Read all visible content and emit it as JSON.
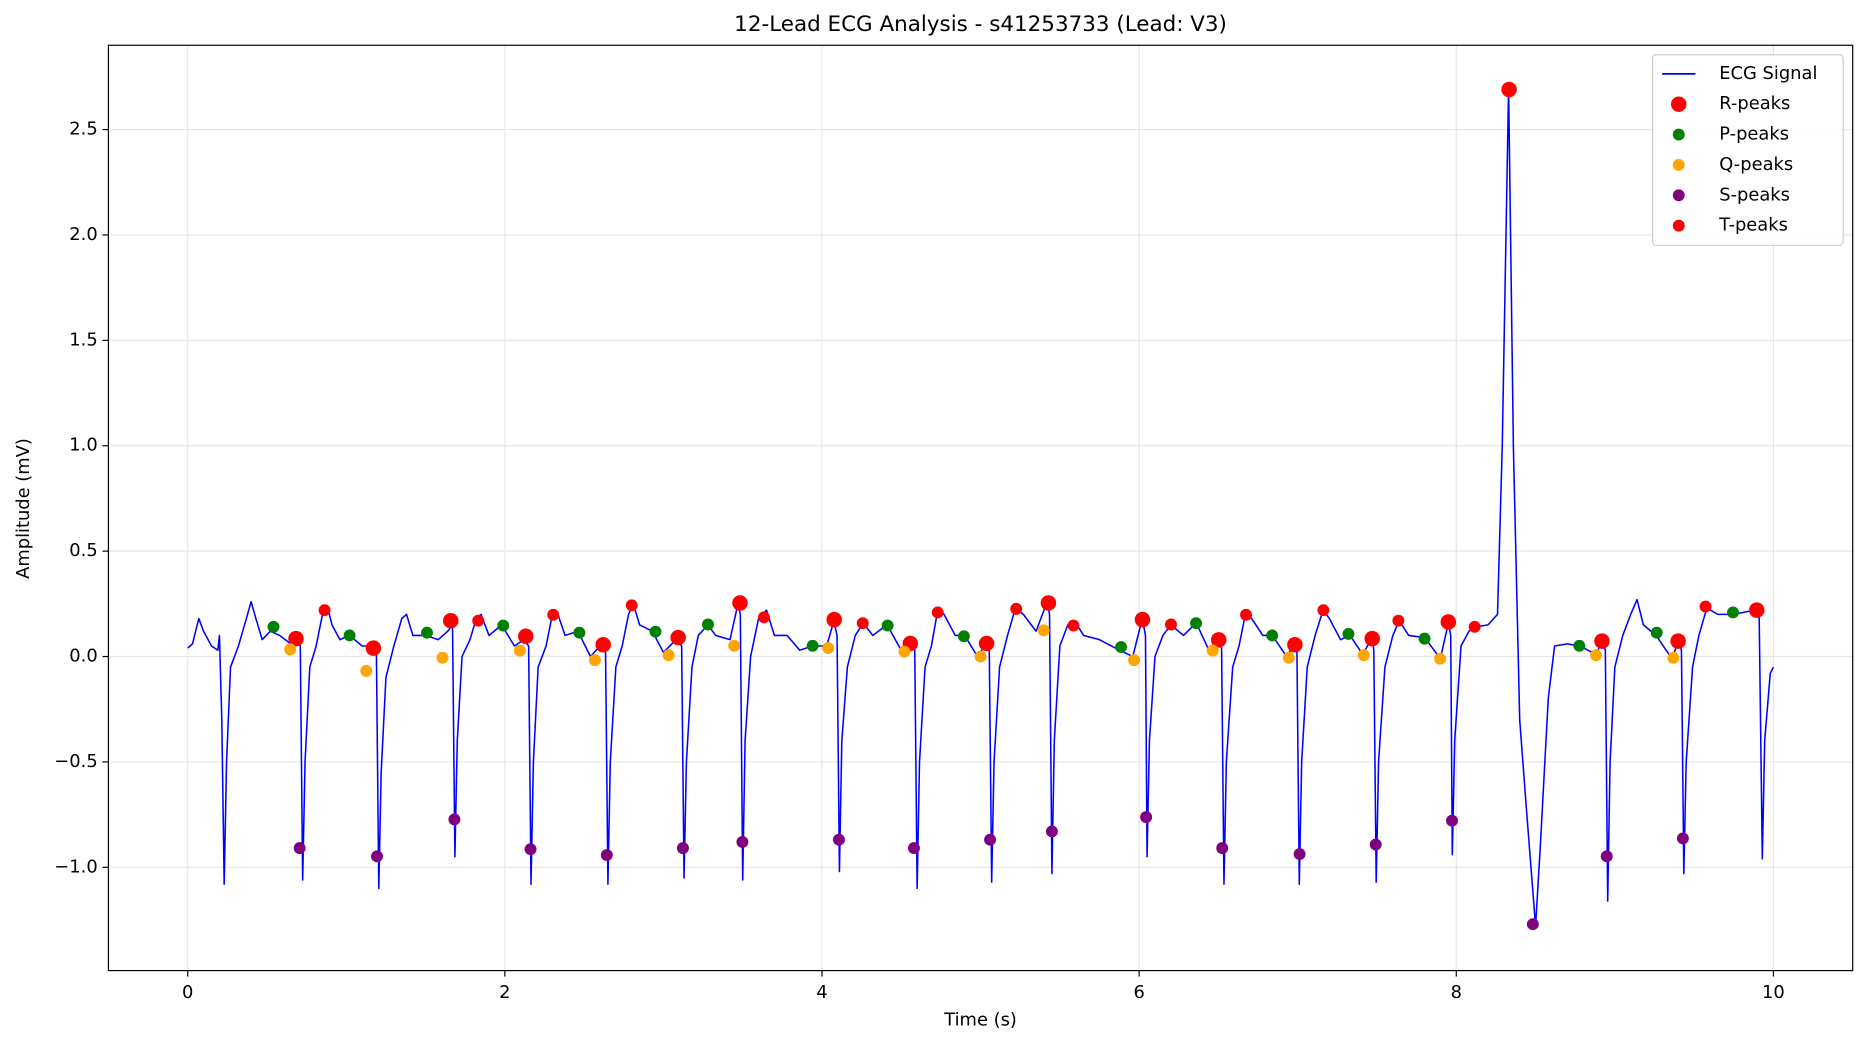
{
  "chart_data": {
    "type": "line",
    "title": "12-Lead ECG Analysis - s41253733 (Lead: V3)",
    "x_label": "Time (s)",
    "y_label": "Amplitude (mV)",
    "xlim": [
      -0.5,
      10.5
    ],
    "ylim": [
      -1.49,
      2.9
    ],
    "xticks": [
      0,
      2,
      4,
      6,
      8,
      10
    ],
    "yticks": [
      {
        "value": -1.0,
        "label": "−1.0"
      },
      {
        "value": -0.5,
        "label": "−0.5"
      },
      {
        "value": 0.0,
        "label": "0.0"
      },
      {
        "value": 0.5,
        "label": "0.5"
      },
      {
        "value": 1.0,
        "label": "1.0"
      },
      {
        "value": 1.5,
        "label": "1.5"
      },
      {
        "value": 2.0,
        "label": "2.0"
      },
      {
        "value": 2.5,
        "label": "2.5"
      }
    ],
    "grid": true,
    "legend": "upper right",
    "series": [
      {
        "name": "ECG Signal",
        "color": "#0000ff",
        "kind": "line",
        "x": [
          0,
          0.03,
          0.07,
          0.1,
          0.15,
          0.19,
          0.2,
          0.215,
          0.23,
          0.245,
          0.27,
          0.32,
          0.37,
          0.4,
          0.43,
          0.47,
          0.52,
          0.58,
          0.65,
          0.69,
          0.71,
          0.725,
          0.74,
          0.77,
          0.81,
          0.85,
          0.88,
          0.91,
          0.96,
          1.02,
          1.1,
          1.16,
          1.19,
          1.205,
          1.22,
          1.25,
          1.3,
          1.35,
          1.38,
          1.42,
          1.5,
          1.58,
          1.64,
          1.67,
          1.685,
          1.7,
          1.73,
          1.78,
          1.82,
          1.85,
          1.9,
          1.98,
          2.06,
          2.12,
          2.15,
          2.165,
          2.18,
          2.21,
          2.26,
          2.3,
          2.33,
          2.38,
          2.46,
          2.54,
          2.6,
          2.635,
          2.65,
          2.665,
          2.7,
          2.74,
          2.78,
          2.81,
          2.85,
          2.93,
          3.0,
          3.08,
          3.115,
          3.13,
          3.145,
          3.18,
          3.22,
          3.28,
          3.33,
          3.42,
          3.47,
          3.485,
          3.5,
          3.515,
          3.55,
          3.6,
          3.65,
          3.7,
          3.78,
          3.86,
          3.94,
          4.03,
          4.075,
          4.095,
          4.11,
          4.125,
          4.16,
          4.21,
          4.26,
          4.32,
          4.41,
          4.5,
          4.555,
          4.585,
          4.6,
          4.615,
          4.65,
          4.69,
          4.73,
          4.77,
          4.84,
          4.9,
          4.98,
          5.035,
          5.055,
          5.07,
          5.085,
          5.12,
          5.17,
          5.22,
          5.27,
          5.35,
          5.42,
          5.435,
          5.45,
          5.465,
          5.5,
          5.55,
          5.6,
          5.65,
          5.75,
          5.85,
          5.96,
          6.02,
          6.04,
          6.05,
          6.065,
          6.1,
          6.15,
          6.2,
          6.28,
          6.36,
          6.44,
          6.5,
          6.52,
          6.535,
          6.55,
          6.59,
          6.63,
          6.67,
          6.71,
          6.78,
          6.84,
          6.93,
          6.98,
          6.995,
          7.01,
          7.025,
          7.06,
          7.11,
          7.16,
          7.2,
          7.27,
          7.33,
          7.41,
          7.47,
          7.48,
          7.495,
          7.51,
          7.55,
          7.6,
          7.64,
          7.7,
          7.8,
          7.9,
          7.95,
          7.965,
          7.975,
          7.99,
          8.03,
          8.08,
          8.12,
          8.2,
          8.26,
          8.29,
          8.33,
          8.36,
          8.4,
          8.44,
          8.5,
          8.53,
          8.58,
          8.62,
          8.7,
          8.78,
          8.88,
          8.92,
          8.94,
          8.955,
          8.97,
          9,
          9.05,
          9.1,
          9.14,
          9.18,
          9.26,
          9.36,
          9.4,
          9.42,
          9.435,
          9.45,
          9.49,
          9.53,
          9.58,
          9.65,
          9.75,
          9.88,
          9.91,
          9.93,
          9.945,
          9.98,
          10
        ],
        "values": [
          0.04,
          0.06,
          0.18,
          0.12,
          0.05,
          0.03,
          0.1,
          -0.3,
          -1.08,
          -0.5,
          -0.05,
          0.05,
          0.18,
          0.26,
          0.18,
          0.08,
          0.12,
          0.1,
          0.06,
          0.1,
          0.05,
          -1.06,
          -0.5,
          -0.05,
          0.05,
          0.2,
          0.24,
          0.15,
          0.08,
          0.1,
          0.05,
          0.05,
          0.02,
          -1.1,
          -0.55,
          -0.1,
          0.05,
          0.18,
          0.2,
          0.1,
          0.1,
          0.08,
          0.12,
          0.15,
          -0.95,
          -0.4,
          0,
          0.08,
          0.18,
          0.2,
          0.1,
          0.15,
          0.05,
          0.08,
          0.05,
          -1.08,
          -0.5,
          -0.05,
          0.05,
          0.2,
          0.21,
          0.1,
          0.12,
          0,
          0.05,
          0.03,
          -1.08,
          -0.5,
          -0.05,
          0.05,
          0.2,
          0.25,
          0.15,
          0.12,
          0.02,
          0.08,
          0.05,
          -1.05,
          -0.5,
          -0.05,
          0.1,
          0.15,
          0.1,
          0.08,
          0.25,
          0.2,
          -1.06,
          -0.4,
          0,
          0.18,
          0.22,
          0.1,
          0.1,
          0.03,
          0.05,
          0.05,
          0.17,
          0.1,
          -1.02,
          -0.4,
          -0.05,
          0.1,
          0.16,
          0.1,
          0.15,
          0.03,
          0.06,
          0.03,
          -1.1,
          -0.5,
          -0.05,
          0.05,
          0.22,
          0.2,
          0.1,
          0.1,
          0,
          0.06,
          0.03,
          -1.07,
          -0.5,
          -0.05,
          0.1,
          0.23,
          0.2,
          0.12,
          0.26,
          0.2,
          -1.03,
          -0.4,
          0.05,
          0.15,
          0.16,
          0.1,
          0.08,
          0.04,
          0,
          0.18,
          0.1,
          -0.95,
          -0.4,
          0,
          0.1,
          0.15,
          0.1,
          0.16,
          0.03,
          0.08,
          0.04,
          -1.08,
          -0.5,
          -0.05,
          0.05,
          0.2,
          0.18,
          0.1,
          0.1,
          0,
          0.06,
          0.03,
          -1.08,
          -0.5,
          -0.05,
          0.1,
          0.22,
          0.18,
          0.08,
          0.1,
          0.01,
          0.09,
          0.03,
          -1.07,
          -0.5,
          -0.05,
          0.1,
          0.17,
          0.1,
          0.09,
          -0.01,
          0.16,
          0.1,
          -0.94,
          -0.4,
          0.05,
          0.12,
          0.14,
          0.15,
          0.2,
          1,
          2.7,
          1,
          -0.3,
          -0.7,
          -1.28,
          -0.9,
          -0.2,
          0.05,
          0.06,
          0.05,
          0.01,
          0.07,
          0.03,
          -1.16,
          -0.5,
          -0.05,
          0.1,
          0.2,
          0.27,
          0.15,
          0.1,
          -0.01,
          0.07,
          0.03,
          -1.03,
          -0.5,
          -0.05,
          0.1,
          0.23,
          0.2,
          0.2,
          0.22,
          0.2,
          -0.96,
          -0.4,
          -0.08,
          -0.05
        ]
      },
      {
        "name": "R-peaks",
        "color": "#ff0000",
        "kind": "scatter",
        "x": [
          0.683,
          1.171,
          1.659,
          2.132,
          2.62,
          3.093,
          3.483,
          4.077,
          4.557,
          5.038,
          5.428,
          6.021,
          6.502,
          6.982,
          7.47,
          7.95,
          8.333,
          8.919,
          9.399,
          9.895
        ],
        "values": [
          0.085,
          0.04,
          0.17,
          0.096,
          0.056,
          0.09,
          0.254,
          0.175,
          0.062,
          0.062,
          0.254,
          0.175,
          0.079,
          0.056,
          0.085,
          0.164,
          2.69,
          0.073,
          0.073,
          0.22
        ]
      },
      {
        "name": "P-peaks",
        "color": "#008000",
        "kind": "scatter",
        "x": [
          0.541,
          1.021,
          1.509,
          1.99,
          2.47,
          2.95,
          3.281,
          3.941,
          4.414,
          4.895,
          5.886,
          6.359,
          6.839,
          7.32,
          7.8,
          8.776,
          9.264,
          9.745
        ],
        "values": [
          0.141,
          0.1,
          0.113,
          0.147,
          0.113,
          0.118,
          0.152,
          0.051,
          0.147,
          0.096,
          0.045,
          0.158,
          0.1,
          0.107,
          0.085,
          0.051,
          0.113,
          0.209
        ]
      },
      {
        "name": "Q-peaks",
        "color": "#ffa500",
        "kind": "scatter",
        "x": [
          0.646,
          1.126,
          1.607,
          2.095,
          2.568,
          3.033,
          3.446,
          4.039,
          4.52,
          5.0,
          5.398,
          5.968,
          6.464,
          6.944,
          7.417,
          7.898,
          8.881,
          9.369
        ],
        "values": [
          0.034,
          -0.068,
          -0.006,
          0.028,
          -0.017,
          0.006,
          0.051,
          0.04,
          0.023,
          0.0,
          0.124,
          -0.017,
          0.028,
          -0.006,
          0.006,
          -0.011,
          0.006,
          -0.006
        ]
      },
      {
        "name": "S-peaks",
        "color": "#800080",
        "kind": "scatter",
        "x": [
          0.706,
          1.194,
          1.682,
          2.162,
          2.643,
          3.123,
          3.498,
          4.107,
          4.58,
          5.06,
          5.45,
          6.044,
          6.524,
          7.012,
          7.492,
          7.973,
          8.483,
          8.949,
          9.429
        ],
        "values": [
          -0.909,
          -0.948,
          -0.773,
          -0.914,
          -0.942,
          -0.909,
          -0.88,
          -0.869,
          -0.909,
          -0.869,
          -0.83,
          -0.762,
          -0.909,
          -0.937,
          -0.892,
          -0.779,
          -1.27,
          -0.948,
          -0.863
        ]
      },
      {
        "name": "T-peaks",
        "color": "#ff0000",
        "kind": "scatter",
        "x": [
          0.863,
          1.832,
          2.305,
          2.8,
          3.634,
          4.257,
          4.73,
          5.225,
          5.586,
          6.201,
          6.674,
          7.162,
          7.635,
          8.116,
          9.572
        ],
        "values": [
          0.22,
          0.17,
          0.198,
          0.243,
          0.186,
          0.158,
          0.209,
          0.226,
          0.147,
          0.152,
          0.198,
          0.22,
          0.17,
          0.141,
          0.237
        ]
      }
    ]
  }
}
